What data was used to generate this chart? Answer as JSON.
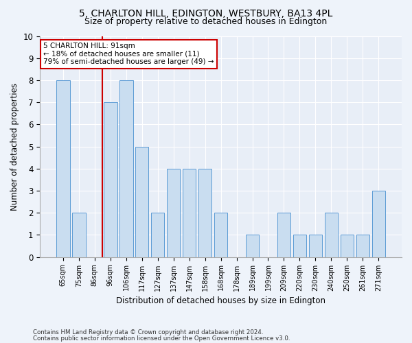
{
  "title1": "5, CHARLTON HILL, EDINGTON, WESTBURY, BA13 4PL",
  "title2": "Size of property relative to detached houses in Edington",
  "xlabel": "Distribution of detached houses by size in Edington",
  "ylabel": "Number of detached properties",
  "categories": [
    "65sqm",
    "75sqm",
    "86sqm",
    "96sqm",
    "106sqm",
    "117sqm",
    "127sqm",
    "137sqm",
    "147sqm",
    "158sqm",
    "168sqm",
    "178sqm",
    "189sqm",
    "199sqm",
    "209sqm",
    "220sqm",
    "230sqm",
    "240sqm",
    "250sqm",
    "261sqm",
    "271sqm"
  ],
  "values": [
    8,
    2,
    0,
    7,
    8,
    5,
    2,
    4,
    4,
    4,
    2,
    0,
    1,
    0,
    2,
    1,
    1,
    2,
    1,
    1,
    3
  ],
  "bar_color": "#c9ddf0",
  "bar_edge_color": "#5b9bd5",
  "vline_pos": 2.5,
  "vline_color": "#cc0000",
  "annotation_text": "5 CHARLTON HILL: 91sqm\n← 18% of detached houses are smaller (11)\n79% of semi-detached houses are larger (49) →",
  "annotation_box_facecolor": "#ffffff",
  "annotation_box_edgecolor": "#cc0000",
  "ylim": [
    0,
    10
  ],
  "yticks": [
    0,
    1,
    2,
    3,
    4,
    5,
    6,
    7,
    8,
    9,
    10
  ],
  "footer1": "Contains HM Land Registry data © Crown copyright and database right 2024.",
  "footer2": "Contains public sector information licensed under the Open Government Licence v3.0.",
  "fig_facecolor": "#eef3fa",
  "axes_facecolor": "#e8eef7",
  "grid_color": "#ffffff",
  "title1_fontsize": 10,
  "title2_fontsize": 9
}
